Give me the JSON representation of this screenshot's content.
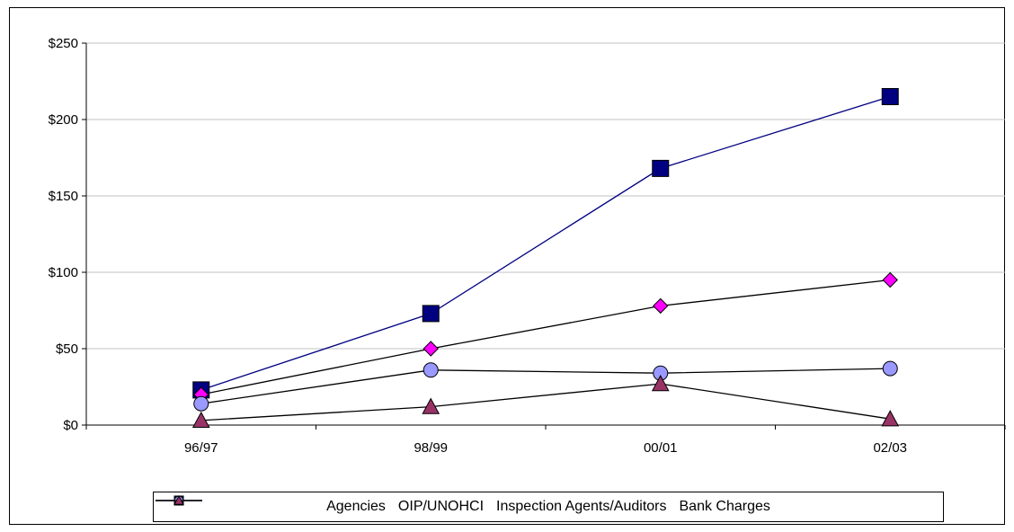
{
  "chart_data": {
    "type": "line",
    "title": "",
    "xlabel": "",
    "ylabel": "",
    "categories": [
      "96/97",
      "98/99",
      "00/01",
      "02/03"
    ],
    "ylim": [
      0,
      250
    ],
    "yticks": [
      0,
      50,
      100,
      150,
      200,
      250
    ],
    "ytick_labels": [
      "$0",
      "$50",
      "$100",
      "$150",
      "$200",
      "$250"
    ],
    "grid": true,
    "legend_position": "bottom",
    "series": [
      {
        "name": "Agencies",
        "values": [
          23,
          73,
          168,
          215
        ],
        "color": "#000080",
        "marker": "square"
      },
      {
        "name": "OIP/UNOHCI",
        "values": [
          20,
          50,
          78,
          95
        ],
        "color": "#FF00FF",
        "marker": "diamond"
      },
      {
        "name": "Inspection Agents/Auditors",
        "values": [
          14,
          36,
          34,
          37
        ],
        "color": "#9999FF",
        "marker": "circle"
      },
      {
        "name": "Bank Charges",
        "values": [
          3,
          12,
          27,
          4
        ],
        "color": "#993366",
        "marker": "triangle"
      }
    ]
  }
}
